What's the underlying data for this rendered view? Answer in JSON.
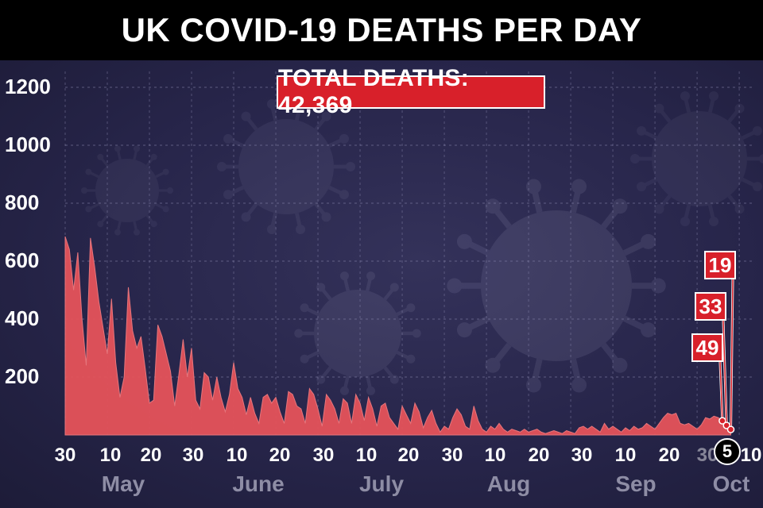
{
  "title": "UK COVID-19 DEATHS PER DAY",
  "total_label": "TOTAL DEATHS: 42,369",
  "colors": {
    "background": "#26243f",
    "area_fill": "#e5535a",
    "grid": "#8c8ab0",
    "callout": "#d8202a",
    "month_label": "#8e8da5"
  },
  "y_ticks": [
    "1200",
    "1000",
    "800",
    "600",
    "400",
    "200"
  ],
  "x_ticks": [
    "30",
    "10",
    "20",
    "30",
    "10",
    "20",
    "30",
    "10",
    "20",
    "30",
    "10",
    "20",
    "30",
    "10",
    "20",
    "30",
    "10"
  ],
  "today_label": "5",
  "months": [
    "May",
    "June",
    "July",
    "Aug",
    "Sep",
    "Oct"
  ],
  "callouts": [
    "19",
    "33",
    "49"
  ],
  "chart_data": {
    "type": "area",
    "title": "UK COVID-19 DEATHS PER DAY",
    "annotation": "TOTAL DEATHS: 42,369",
    "ylim": [
      0,
      1200
    ],
    "yticks": [
      200,
      400,
      600,
      800,
      1000,
      1200
    ],
    "grid": true,
    "x_start": "2020-04-30",
    "x_end": "2020-10-10",
    "series": [
      {
        "values": [
          [
            "2020-04-30",
            685
          ],
          [
            "2020-05-01",
            640
          ],
          [
            "2020-05-02",
            500
          ],
          [
            "2020-05-03",
            630
          ],
          [
            "2020-05-04",
            400
          ],
          [
            "2020-05-05",
            240
          ],
          [
            "2020-05-06",
            680
          ],
          [
            "2020-05-07",
            580
          ],
          [
            "2020-05-08",
            460
          ],
          [
            "2020-05-09",
            370
          ],
          [
            "2020-05-10",
            280
          ],
          [
            "2020-05-11",
            470
          ],
          [
            "2020-05-12",
            250
          ],
          [
            "2020-05-13",
            130
          ],
          [
            "2020-05-14",
            200
          ],
          [
            "2020-05-15",
            510
          ],
          [
            "2020-05-16",
            360
          ],
          [
            "2020-05-17",
            300
          ],
          [
            "2020-05-18",
            340
          ],
          [
            "2020-05-19",
            230
          ],
          [
            "2020-05-20",
            110
          ],
          [
            "2020-05-21",
            120
          ],
          [
            "2020-05-22",
            380
          ],
          [
            "2020-05-23",
            340
          ],
          [
            "2020-05-24",
            280
          ],
          [
            "2020-05-25",
            220
          ],
          [
            "2020-05-26",
            100
          ],
          [
            "2020-05-27",
            210
          ],
          [
            "2020-05-28",
            330
          ],
          [
            "2020-05-29",
            200
          ],
          [
            "2020-05-30",
            300
          ],
          [
            "2020-05-31",
            120
          ],
          [
            "2020-06-01",
            90
          ],
          [
            "2020-06-02",
            215
          ],
          [
            "2020-06-03",
            200
          ],
          [
            "2020-06-04",
            120
          ],
          [
            "2020-06-05",
            200
          ],
          [
            "2020-06-06",
            130
          ],
          [
            "2020-06-07",
            80
          ],
          [
            "2020-06-08",
            140
          ],
          [
            "2020-06-09",
            250
          ],
          [
            "2020-06-10",
            160
          ],
          [
            "2020-06-11",
            130
          ],
          [
            "2020-06-12",
            70
          ],
          [
            "2020-06-13",
            130
          ],
          [
            "2020-06-14",
            75
          ],
          [
            "2020-06-15",
            40
          ],
          [
            "2020-06-16",
            130
          ],
          [
            "2020-06-17",
            140
          ],
          [
            "2020-06-18",
            110
          ],
          [
            "2020-06-19",
            130
          ],
          [
            "2020-06-20",
            80
          ],
          [
            "2020-06-21",
            40
          ],
          [
            "2020-06-22",
            150
          ],
          [
            "2020-06-23",
            140
          ],
          [
            "2020-06-24",
            100
          ],
          [
            "2020-06-25",
            90
          ],
          [
            "2020-06-26",
            40
          ],
          [
            "2020-06-27",
            160
          ],
          [
            "2020-06-28",
            140
          ],
          [
            "2020-06-29",
            90
          ],
          [
            "2020-06-30",
            30
          ],
          [
            "2020-07-01",
            140
          ],
          [
            "2020-07-02",
            120
          ],
          [
            "2020-07-03",
            90
          ],
          [
            "2020-07-04",
            40
          ],
          [
            "2020-07-05",
            125
          ],
          [
            "2020-07-06",
            110
          ],
          [
            "2020-07-07",
            40
          ],
          [
            "2020-07-08",
            140
          ],
          [
            "2020-07-09",
            110
          ],
          [
            "2020-07-10",
            50
          ],
          [
            "2020-07-11",
            130
          ],
          [
            "2020-07-12",
            90
          ],
          [
            "2020-07-13",
            30
          ],
          [
            "2020-07-14",
            100
          ],
          [
            "2020-07-15",
            110
          ],
          [
            "2020-07-16",
            60
          ],
          [
            "2020-07-17",
            40
          ],
          [
            "2020-07-18",
            20
          ],
          [
            "2020-07-19",
            100
          ],
          [
            "2020-07-20",
            70
          ],
          [
            "2020-07-21",
            40
          ],
          [
            "2020-07-22",
            110
          ],
          [
            "2020-07-23",
            80
          ],
          [
            "2020-07-24",
            25
          ],
          [
            "2020-07-25",
            60
          ],
          [
            "2020-07-26",
            85
          ],
          [
            "2020-07-27",
            40
          ],
          [
            "2020-07-28",
            10
          ],
          [
            "2020-07-29",
            30
          ],
          [
            "2020-07-30",
            20
          ],
          [
            "2020-07-31",
            60
          ],
          [
            "2020-08-01",
            90
          ],
          [
            "2020-08-02",
            70
          ],
          [
            "2020-08-03",
            30
          ],
          [
            "2020-08-04",
            20
          ],
          [
            "2020-08-05",
            100
          ],
          [
            "2020-08-06",
            50
          ],
          [
            "2020-08-07",
            20
          ],
          [
            "2020-08-08",
            10
          ],
          [
            "2020-08-09",
            30
          ],
          [
            "2020-08-10",
            20
          ],
          [
            "2020-08-11",
            40
          ],
          [
            "2020-08-12",
            20
          ],
          [
            "2020-08-13",
            10
          ],
          [
            "2020-08-14",
            20
          ],
          [
            "2020-08-15",
            15
          ],
          [
            "2020-08-16",
            10
          ],
          [
            "2020-08-17",
            20
          ],
          [
            "2020-08-18",
            10
          ],
          [
            "2020-08-19",
            15
          ],
          [
            "2020-08-20",
            20
          ],
          [
            "2020-08-21",
            10
          ],
          [
            "2020-08-22",
            5
          ],
          [
            "2020-08-23",
            10
          ],
          [
            "2020-08-24",
            15
          ],
          [
            "2020-08-25",
            10
          ],
          [
            "2020-08-26",
            5
          ],
          [
            "2020-08-27",
            15
          ],
          [
            "2020-08-28",
            10
          ],
          [
            "2020-08-29",
            5
          ],
          [
            "2020-08-30",
            25
          ],
          [
            "2020-08-31",
            30
          ],
          [
            "2020-09-01",
            20
          ],
          [
            "2020-09-02",
            30
          ],
          [
            "2020-09-03",
            20
          ],
          [
            "2020-09-04",
            10
          ],
          [
            "2020-09-05",
            40
          ],
          [
            "2020-09-06",
            20
          ],
          [
            "2020-09-07",
            30
          ],
          [
            "2020-09-08",
            20
          ],
          [
            "2020-09-09",
            10
          ],
          [
            "2020-09-10",
            25
          ],
          [
            "2020-09-11",
            15
          ],
          [
            "2020-09-12",
            30
          ],
          [
            "2020-09-13",
            20
          ],
          [
            "2020-09-14",
            25
          ],
          [
            "2020-09-15",
            40
          ],
          [
            "2020-09-16",
            30
          ],
          [
            "2020-09-17",
            20
          ],
          [
            "2020-09-18",
            40
          ],
          [
            "2020-09-19",
            60
          ],
          [
            "2020-09-20",
            75
          ],
          [
            "2020-09-21",
            70
          ],
          [
            "2020-09-22",
            75
          ],
          [
            "2020-09-23",
            40
          ],
          [
            "2020-09-24",
            35
          ],
          [
            "2020-09-25",
            40
          ],
          [
            "2020-09-26",
            30
          ],
          [
            "2020-09-27",
            20
          ],
          [
            "2020-09-28",
            35
          ],
          [
            "2020-09-29",
            60
          ],
          [
            "2020-09-30",
            55
          ],
          [
            "2020-10-01",
            65
          ],
          [
            "2020-10-02",
            60
          ],
          [
            "2020-10-03",
            49
          ],
          [
            "2020-10-04",
            33
          ],
          [
            "2020-10-05",
            19
          ]
        ]
      }
    ],
    "annotations": [
      {
        "date": "2020-10-03",
        "value": 49,
        "label": "49"
      },
      {
        "date": "2020-10-04",
        "value": 33,
        "label": "33"
      },
      {
        "date": "2020-10-05",
        "value": 19,
        "label": "19"
      }
    ],
    "highlight_x": "5"
  }
}
